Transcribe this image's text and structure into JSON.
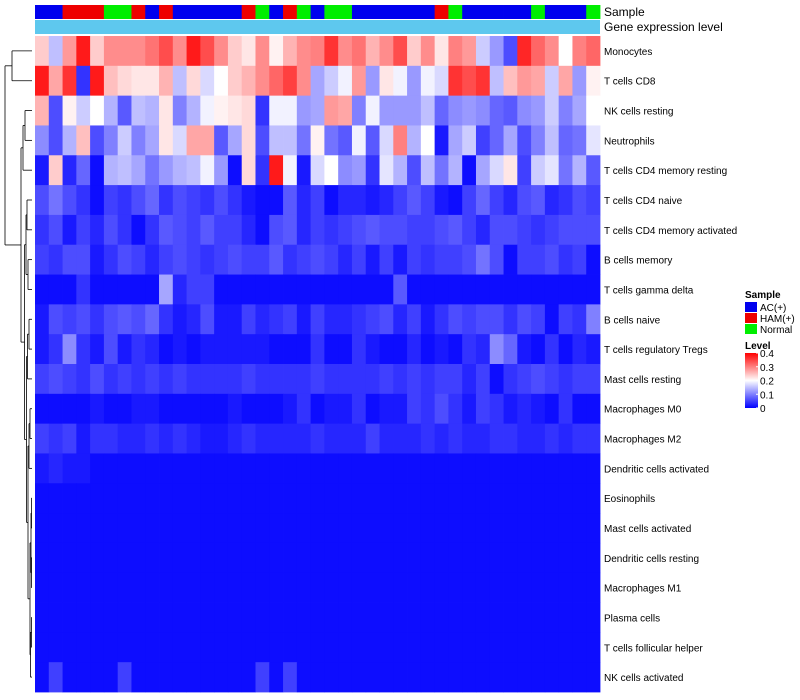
{
  "chart_data": {
    "type": "heatmap",
    "annotation_tracks": [
      "Sample",
      "Gene expression level"
    ],
    "rows": [
      "Monocytes",
      "T cells CD8",
      "NK cells resting",
      "Neutrophils",
      "T cells CD4 memory resting",
      "T cells CD4 naive",
      "T cells CD4 memory activated",
      "B cells memory",
      "T cells gamma delta",
      "B cells naive",
      "T cells regulatory  Tregs",
      "Mast cells resting",
      "Macrophages M0",
      "Macrophages M2",
      "Dendritic cells activated",
      "Eosinophils",
      "Mast cells activated",
      "Dendritic cells resting",
      "Macrophages M1",
      "Plasma cells",
      "T cells follicular helper",
      "NK cells activated"
    ],
    "sample_groups": [
      "AC",
      "AC",
      "HAM",
      "HAM",
      "HAM",
      "Normal",
      "Normal",
      "HAM",
      "AC",
      "HAM",
      "AC",
      "AC",
      "AC",
      "AC",
      "AC",
      "HAM",
      "Normal",
      "AC",
      "HAM",
      "Normal",
      "AC",
      "Normal",
      "Normal",
      "AC",
      "AC",
      "AC",
      "AC",
      "AC",
      "AC",
      "HAM",
      "Normal",
      "AC",
      "AC",
      "AC",
      "AC",
      "AC",
      "Normal",
      "AC",
      "AC",
      "AC",
      "Normal"
    ],
    "values": [
      [
        0.24,
        0.15,
        0.28,
        0.38,
        0.24,
        0.29,
        0.29,
        0.29,
        0.31,
        0.34,
        0.29,
        0.38,
        0.34,
        0.29,
        0.24,
        0.22,
        0.29,
        0.21,
        0.26,
        0.29,
        0.3,
        0.36,
        0.29,
        0.31,
        0.26,
        0.29,
        0.34,
        0.24,
        0.29,
        0.22,
        0.3,
        0.28,
        0.16,
        0.12,
        0.06,
        0.37,
        0.32,
        0.29,
        0.2,
        0.3,
        0.32
      ],
      [
        0.38,
        0.27,
        0.36,
        0.04,
        0.38,
        0.25,
        0.23,
        0.22,
        0.22,
        0.26,
        0.15,
        0.23,
        0.17,
        0.2,
        0.24,
        0.26,
        0.29,
        0.32,
        0.35,
        0.29,
        0.13,
        0.16,
        0.19,
        0.28,
        0.12,
        0.22,
        0.19,
        0.12,
        0.19,
        0.17,
        0.36,
        0.34,
        0.36,
        0.15,
        0.25,
        0.28,
        0.27,
        0.16,
        0.27,
        0.12,
        0.21
      ],
      [
        0.26,
        0.06,
        0.21,
        0.16,
        0.2,
        0.14,
        0.07,
        0.15,
        0.14,
        0.22,
        0.1,
        0.14,
        0.19,
        0.21,
        0.22,
        0.23,
        0.04,
        0.19,
        0.19,
        0.12,
        0.13,
        0.28,
        0.27,
        0.1,
        0.19,
        0.12,
        0.12,
        0.12,
        0.15,
        0.08,
        0.11,
        0.12,
        0.11,
        0.08,
        0.07,
        0.11,
        0.12,
        0.16,
        0.1,
        0.13,
        0.2
      ],
      [
        0.11,
        0.06,
        0.14,
        0.25,
        0.06,
        0.1,
        0.16,
        0.1,
        0.13,
        0.22,
        0.17,
        0.27,
        0.27,
        0.07,
        0.13,
        0.23,
        0.06,
        0.15,
        0.15,
        0.09,
        0.21,
        0.09,
        0.07,
        0.19,
        0.07,
        0.17,
        0.3,
        0.14,
        0.2,
        0.02,
        0.13,
        0.16,
        0.05,
        0.08,
        0.13,
        0.06,
        0.1,
        0.15,
        0.08,
        0.09,
        0.18
      ],
      [
        0.02,
        0.24,
        0.03,
        0.08,
        0.01,
        0.14,
        0.15,
        0.13,
        0.09,
        0.12,
        0.14,
        0.15,
        0.19,
        0.12,
        0.01,
        0.23,
        0.04,
        0.38,
        0.19,
        0.02,
        0.17,
        0.2,
        0.11,
        0.12,
        0.04,
        0.18,
        0.14,
        0.06,
        0.15,
        0.09,
        0.14,
        0.01,
        0.13,
        0.17,
        0.22,
        0.05,
        0.16,
        0.18,
        0.09,
        0.14,
        0.07
      ],
      [
        0.06,
        0.09,
        0.06,
        0.04,
        0.01,
        0.05,
        0.04,
        0.06,
        0.08,
        0.04,
        0.06,
        0.05,
        0.04,
        0.06,
        0.04,
        0.02,
        0.01,
        0.01,
        0.07,
        0.03,
        0.05,
        0.01,
        0.03,
        0.03,
        0.02,
        0.03,
        0.05,
        0.07,
        0.05,
        0.02,
        0.01,
        0.05,
        0.08,
        0.05,
        0.03,
        0.06,
        0.07,
        0.03,
        0.04,
        0.06,
        0.05
      ],
      [
        0.04,
        0.06,
        0.02,
        0.05,
        0.03,
        0.06,
        0.04,
        0.01,
        0.04,
        0.07,
        0.06,
        0.05,
        0.07,
        0.05,
        0.05,
        0.03,
        0.01,
        0.06,
        0.07,
        0.03,
        0.05,
        0.04,
        0.05,
        0.06,
        0.07,
        0.06,
        0.06,
        0.05,
        0.05,
        0.06,
        0.07,
        0.05,
        0.03,
        0.06,
        0.06,
        0.05,
        0.04,
        0.05,
        0.06,
        0.06,
        0.06
      ],
      [
        0.05,
        0.04,
        0.06,
        0.06,
        0.02,
        0.04,
        0.06,
        0.05,
        0.03,
        0.05,
        0.06,
        0.05,
        0.04,
        0.05,
        0.06,
        0.05,
        0.05,
        0.07,
        0.04,
        0.05,
        0.06,
        0.05,
        0.03,
        0.05,
        0.02,
        0.05,
        0.02,
        0.05,
        0.04,
        0.05,
        0.05,
        0.06,
        0.09,
        0.06,
        0.01,
        0.05,
        0.05,
        0.06,
        0.04,
        0.05,
        0.01
      ],
      [
        0.01,
        0.01,
        0.01,
        0.04,
        0.01,
        0.01,
        0.01,
        0.01,
        0.01,
        0.13,
        0.03,
        0.05,
        0.05,
        0.01,
        0.01,
        0.01,
        0.01,
        0.01,
        0.01,
        0.01,
        0.01,
        0.01,
        0.01,
        0.01,
        0.01,
        0.01,
        0.07,
        0.01,
        0.01,
        0.01,
        0.01,
        0.01,
        0.01,
        0.01,
        0.01,
        0.01,
        0.01,
        0.01,
        0.01,
        0.01,
        0.01
      ],
      [
        0.02,
        0.06,
        0.05,
        0.06,
        0.04,
        0.06,
        0.07,
        0.06,
        0.08,
        0.04,
        0.02,
        0.03,
        0.06,
        0.02,
        0.02,
        0.05,
        0.03,
        0.04,
        0.05,
        0.02,
        0.05,
        0.03,
        0.03,
        0.04,
        0.05,
        0.06,
        0.03,
        0.05,
        0.02,
        0.04,
        0.06,
        0.05,
        0.06,
        0.06,
        0.04,
        0.06,
        0.05,
        0.01,
        0.05,
        0.04,
        0.1
      ],
      [
        0.02,
        0.04,
        0.11,
        0.04,
        0.02,
        0.06,
        0.02,
        0.04,
        0.03,
        0.01,
        0.02,
        0.01,
        0.02,
        0.02,
        0.02,
        0.02,
        0.02,
        0.01,
        0.01,
        0.01,
        0.04,
        0.01,
        0.01,
        0.04,
        0.02,
        0.01,
        0.01,
        0.03,
        0.01,
        0.02,
        0.01,
        0.04,
        0.03,
        0.11,
        0.08,
        0.02,
        0.01,
        0.04,
        0.01,
        0.03,
        0.02
      ],
      [
        0.05,
        0.06,
        0.05,
        0.04,
        0.06,
        0.04,
        0.05,
        0.04,
        0.05,
        0.04,
        0.05,
        0.04,
        0.04,
        0.04,
        0.04,
        0.05,
        0.04,
        0.04,
        0.04,
        0.04,
        0.05,
        0.04,
        0.04,
        0.04,
        0.04,
        0.05,
        0.04,
        0.05,
        0.04,
        0.05,
        0.05,
        0.03,
        0.05,
        0.01,
        0.04,
        0.05,
        0.06,
        0.05,
        0.04,
        0.05,
        0.05
      ],
      [
        0.01,
        0.01,
        0.01,
        0.01,
        0.02,
        0.01,
        0.01,
        0.02,
        0.02,
        0.01,
        0.01,
        0.01,
        0.01,
        0.01,
        0.02,
        0.01,
        0.01,
        0.01,
        0.02,
        0.04,
        0.01,
        0.02,
        0.02,
        0.04,
        0.01,
        0.02,
        0.02,
        0.05,
        0.04,
        0.06,
        0.04,
        0.02,
        0.05,
        0.04,
        0.02,
        0.03,
        0.02,
        0.01,
        0.04,
        0.01,
        0.01
      ],
      [
        0.05,
        0.04,
        0.05,
        0.02,
        0.04,
        0.04,
        0.03,
        0.03,
        0.04,
        0.03,
        0.04,
        0.03,
        0.02,
        0.02,
        0.03,
        0.04,
        0.03,
        0.03,
        0.03,
        0.03,
        0.04,
        0.03,
        0.03,
        0.03,
        0.05,
        0.03,
        0.03,
        0.03,
        0.04,
        0.03,
        0.04,
        0.03,
        0.03,
        0.04,
        0.04,
        0.03,
        0.03,
        0.04,
        0.03,
        0.04,
        0.04
      ],
      [
        0.02,
        0.03,
        0.02,
        0.02,
        0.01,
        0.01,
        0.01,
        0.01,
        0.01,
        0.01,
        0.01,
        0.01,
        0.01,
        0.01,
        0.01,
        0.01,
        0.01,
        0.01,
        0.01,
        0.01,
        0.01,
        0.01,
        0.01,
        0.01,
        0.01,
        0.01,
        0.01,
        0.01,
        0.01,
        0.01,
        0.01,
        0.01,
        0.01,
        0.01,
        0.01,
        0.01,
        0.01,
        0.01,
        0.01,
        0.01,
        0.01
      ],
      [
        0.01,
        0.01,
        0.01,
        0.01,
        0.01,
        0.01,
        0.01,
        0.01,
        0.01,
        0.01,
        0.01,
        0.01,
        0.01,
        0.01,
        0.01,
        0.01,
        0.01,
        0.01,
        0.01,
        0.01,
        0.01,
        0.01,
        0.01,
        0.01,
        0.01,
        0.01,
        0.01,
        0.01,
        0.01,
        0.01,
        0.01,
        0.01,
        0.01,
        0.01,
        0.01,
        0.01,
        0.01,
        0.01,
        0.01,
        0.01,
        0.01
      ],
      [
        0.01,
        0.01,
        0.01,
        0.01,
        0.01,
        0.01,
        0.01,
        0.01,
        0.01,
        0.01,
        0.01,
        0.01,
        0.01,
        0.01,
        0.01,
        0.01,
        0.01,
        0.01,
        0.01,
        0.01,
        0.01,
        0.01,
        0.01,
        0.01,
        0.01,
        0.01,
        0.01,
        0.01,
        0.01,
        0.01,
        0.01,
        0.01,
        0.01,
        0.01,
        0.01,
        0.01,
        0.01,
        0.01,
        0.01,
        0.01,
        0.01
      ],
      [
        0.01,
        0.01,
        0.01,
        0.01,
        0.01,
        0.01,
        0.01,
        0.01,
        0.01,
        0.01,
        0.01,
        0.01,
        0.01,
        0.01,
        0.01,
        0.01,
        0.01,
        0.01,
        0.01,
        0.01,
        0.01,
        0.01,
        0.01,
        0.01,
        0.01,
        0.01,
        0.01,
        0.01,
        0.01,
        0.01,
        0.01,
        0.01,
        0.01,
        0.01,
        0.01,
        0.01,
        0.01,
        0.01,
        0.01,
        0.01,
        0.01
      ],
      [
        0.01,
        0.01,
        0.01,
        0.01,
        0.01,
        0.01,
        0.01,
        0.01,
        0.01,
        0.01,
        0.01,
        0.01,
        0.01,
        0.01,
        0.01,
        0.01,
        0.01,
        0.01,
        0.01,
        0.01,
        0.01,
        0.01,
        0.01,
        0.01,
        0.01,
        0.01,
        0.01,
        0.01,
        0.01,
        0.01,
        0.01,
        0.01,
        0.01,
        0.01,
        0.01,
        0.01,
        0.01,
        0.01,
        0.01,
        0.01,
        0.01
      ],
      [
        0.01,
        0.01,
        0.01,
        0.01,
        0.01,
        0.01,
        0.01,
        0.01,
        0.01,
        0.01,
        0.01,
        0.01,
        0.01,
        0.01,
        0.01,
        0.01,
        0.01,
        0.01,
        0.01,
        0.01,
        0.01,
        0.01,
        0.01,
        0.01,
        0.01,
        0.01,
        0.01,
        0.01,
        0.01,
        0.01,
        0.01,
        0.01,
        0.01,
        0.01,
        0.01,
        0.01,
        0.01,
        0.01,
        0.01,
        0.01,
        0.01
      ],
      [
        0.01,
        0.01,
        0.01,
        0.01,
        0.01,
        0.01,
        0.01,
        0.01,
        0.01,
        0.01,
        0.01,
        0.01,
        0.01,
        0.01,
        0.01,
        0.01,
        0.01,
        0.01,
        0.01,
        0.01,
        0.01,
        0.01,
        0.01,
        0.01,
        0.01,
        0.01,
        0.01,
        0.01,
        0.01,
        0.01,
        0.01,
        0.01,
        0.01,
        0.01,
        0.01,
        0.01,
        0.01,
        0.01,
        0.01,
        0.01,
        0.01
      ],
      [
        0.01,
        0.05,
        0.01,
        0.01,
        0.01,
        0.01,
        0.05,
        0.01,
        0.01,
        0.01,
        0.01,
        0.01,
        0.01,
        0.01,
        0.01,
        0.01,
        0.05,
        0.01,
        0.05,
        0.01,
        0.01,
        0.01,
        0.01,
        0.01,
        0.01,
        0.01,
        0.01,
        0.01,
        0.01,
        0.01,
        0.01,
        0.01,
        0.01,
        0.01,
        0.01,
        0.01,
        0.01,
        0.01,
        0.01,
        0.01,
        0.01
      ]
    ],
    "color_scale": {
      "min": 0,
      "max": 0.4,
      "colors": [
        "#0000ff",
        "#ffffff",
        "#ff0000"
      ]
    },
    "legend": {
      "sample_title": "Sample",
      "sample_entries": [
        {
          "key": "AC",
          "label": "AC(+)",
          "color": "#0000ee"
        },
        {
          "key": "HAM",
          "label": "HAM(+)",
          "color": "#ee0000"
        },
        {
          "key": "Normal",
          "label": "Normal",
          "color": "#00ee00"
        }
      ],
      "level_title": "Level",
      "level_ticks": [
        0.4,
        0.3,
        0.2,
        0.1,
        0
      ],
      "level_tick_labels": [
        "0.4",
        "0.3",
        "0.2",
        "0.1",
        "0"
      ]
    },
    "gene_expression_color": "#5ec8ee",
    "dendrogram": true
  }
}
